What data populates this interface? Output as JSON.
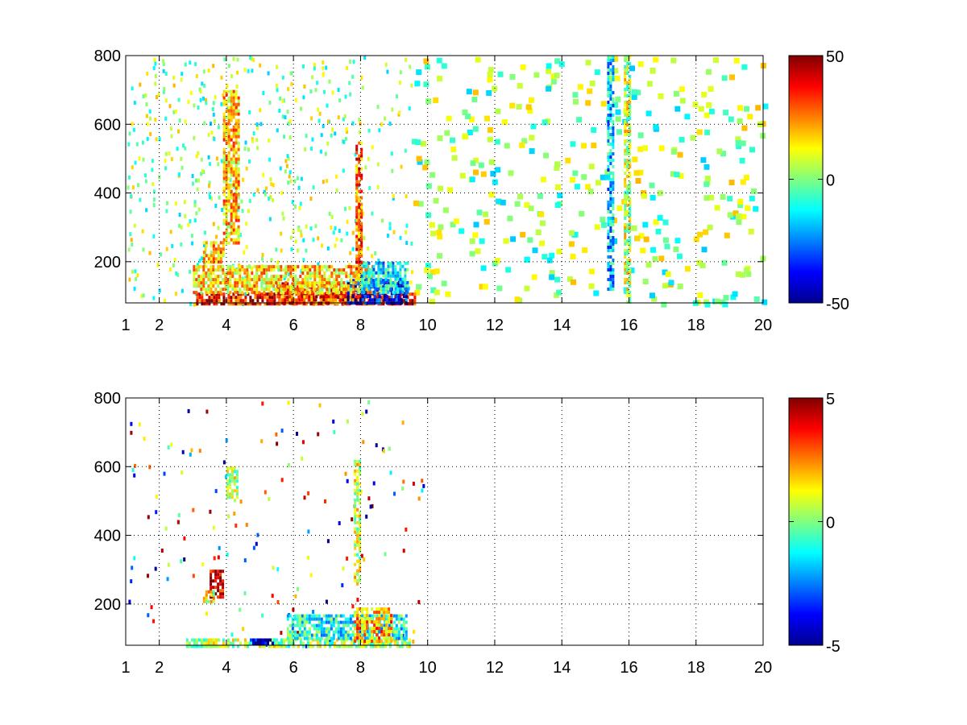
{
  "chart_data": [
    {
      "type": "heatmap",
      "title": "",
      "xlabel": "",
      "ylabel": "",
      "xlim": [
        1,
        20
      ],
      "ylim": [
        80,
        800
      ],
      "xticks": [
        1,
        2,
        4,
        6,
        8,
        10,
        12,
        14,
        16,
        18,
        20
      ],
      "yticks": [
        200,
        400,
        600,
        800
      ],
      "grid": true,
      "colormap": "jet",
      "clim": [
        -50,
        50
      ],
      "colorbar_ticks": [
        "50",
        "0",
        "-50"
      ],
      "regions": [
        {
          "x": [
            3.1,
            9.6
          ],
          "y": [
            80,
            110
          ],
          "value": 38
        },
        {
          "x": [
            5.5,
            8.0
          ],
          "y": [
            80,
            140
          ],
          "value": 32
        },
        {
          "x": [
            7.6,
            9.4
          ],
          "y": [
            80,
            150
          ],
          "value": -38
        },
        {
          "x": [
            3.0,
            8.4
          ],
          "y": [
            110,
            190
          ],
          "value": 16
        },
        {
          "x": [
            8.0,
            9.4
          ],
          "y": [
            110,
            200
          ],
          "value": -14
        },
        {
          "x": [
            3.3,
            3.9
          ],
          "y": [
            200,
            260
          ],
          "value": 20
        },
        {
          "x": [
            3.9,
            4.4
          ],
          "y": [
            250,
            700
          ],
          "value": 18
        },
        {
          "x": [
            7.85,
            8.0
          ],
          "y": [
            150,
            550
          ],
          "value": 28
        },
        {
          "x": [
            15.35,
            15.5
          ],
          "y": [
            120,
            800
          ],
          "value": -18
        },
        {
          "x": [
            15.85,
            16.05
          ],
          "y": [
            80,
            800
          ],
          "value": 6
        }
      ],
      "noise": {
        "x": [
          1,
          20
        ],
        "y": [
          80,
          800
        ],
        "value_range": [
          -18,
          20
        ],
        "density": "high below x=8, sparse above"
      }
    },
    {
      "type": "heatmap",
      "title": "",
      "xlabel": "",
      "ylabel": "",
      "xlim": [
        1,
        20
      ],
      "ylim": [
        80,
        800
      ],
      "xticks": [
        1,
        2,
        4,
        6,
        8,
        10,
        12,
        14,
        16,
        18,
        20
      ],
      "yticks": [
        200,
        400,
        600,
        800
      ],
      "grid": true,
      "colormap": "jet",
      "clim": [
        -5,
        5
      ],
      "colorbar_ticks": [
        "5",
        "0",
        "-5"
      ],
      "regions": [
        {
          "x": [
            2.8,
            9.5
          ],
          "y": [
            80,
            100
          ],
          "value": 0.3
        },
        {
          "x": [
            5.8,
            9.4
          ],
          "y": [
            100,
            170
          ],
          "value": -1.0
        },
        {
          "x": [
            4.7,
            5.4
          ],
          "y": [
            85,
            100
          ],
          "value": -4.5
        },
        {
          "x": [
            7.8,
            8.9
          ],
          "y": [
            90,
            190
          ],
          "value": 2.0
        },
        {
          "x": [
            3.5,
            3.9
          ],
          "y": [
            220,
            300
          ],
          "value": 4.5
        },
        {
          "x": [
            3.3,
            3.6
          ],
          "y": [
            210,
            240
          ],
          "value": 1.2
        },
        {
          "x": [
            4.0,
            4.3
          ],
          "y": [
            500,
            600
          ],
          "value": 0.5
        },
        {
          "x": [
            7.8,
            7.95
          ],
          "y": [
            260,
            620
          ],
          "value": 0.8
        }
      ],
      "noise": {
        "x": [
          1,
          10
        ],
        "y": [
          80,
          800
        ],
        "value_range": [
          -5,
          5
        ],
        "density": "very sparse"
      }
    }
  ]
}
